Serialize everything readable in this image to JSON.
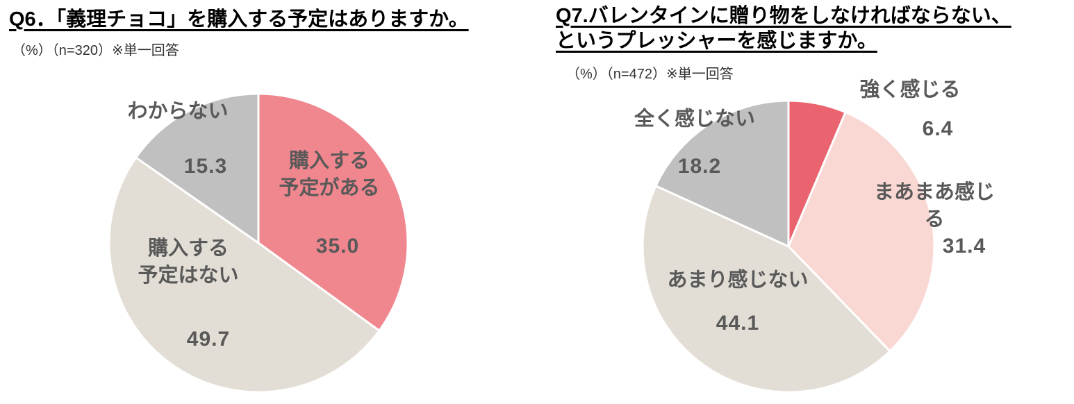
{
  "chart_data": [
    {
      "type": "pie",
      "title": "Q6．「義理チョコ」を購入する予定はありますか。",
      "subtitle": "（%）（n=320）※単一回答",
      "unit": "%",
      "sample_size": 320,
      "start_angle_deg": 0,
      "direction": "clockwise",
      "slices": [
        {
          "label": "購入する予定がある",
          "label_display": "購入する\n予定がある",
          "value": 35.0,
          "display": "35.0",
          "color": "#f0868e"
        },
        {
          "label": "購入する予定はない",
          "label_display": "購入する\n予定はない",
          "value": 49.7,
          "display": "49.7",
          "color": "#e3ded5"
        },
        {
          "label": "わからない",
          "label_display": "わからない",
          "value": 15.3,
          "display": "15.3",
          "color": "#c1c0c0"
        }
      ]
    },
    {
      "type": "pie",
      "title": "Q7.バレンタインに贈り物をしなければならない、というプレッシャーを感じますか。",
      "title_display": "Q7.バレンタインに贈り物をしなければならない、\nというプレッシャーを感じますか。",
      "subtitle": "（%）（n=472）※単一回答",
      "unit": "%",
      "sample_size": 472,
      "start_angle_deg": 0,
      "direction": "clockwise",
      "slices": [
        {
          "label": "強く感じる",
          "value": 6.4,
          "display": "6.4",
          "color": "#e9646f"
        },
        {
          "label": "まあまあ感じる",
          "value": 31.4,
          "display": "31.4",
          "color": "#f9d8d4"
        },
        {
          "label": "あまり感じない",
          "value": 44.1,
          "display": "44.1",
          "color": "#e3ded5"
        },
        {
          "label": "全く感じない",
          "value": 18.2,
          "display": "18.2",
          "color": "#c1c0c0"
        }
      ]
    }
  ]
}
